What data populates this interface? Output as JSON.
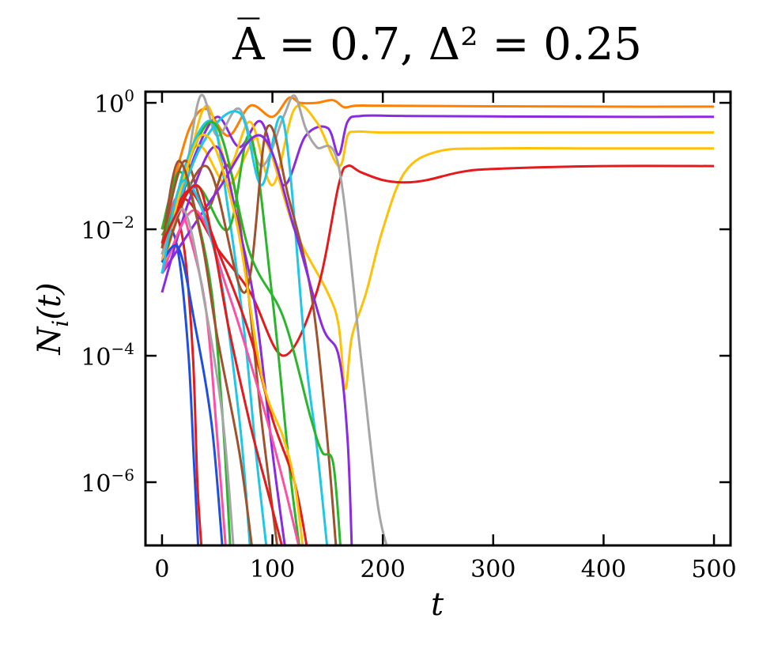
{
  "chart_data": {
    "type": "line",
    "title": "A̅ = 0.7,   Δ² = 0.25",
    "xlabel": "t",
    "ylabel": "N_i(t)",
    "x_ticks": [
      0,
      100,
      200,
      300,
      400,
      500
    ],
    "x_tick_labels": [
      "0",
      "100",
      "200",
      "300",
      "400",
      "500"
    ],
    "y_ticks": [
      1,
      0.01,
      0.0001,
      1e-06
    ],
    "y_tick_labels": [
      {
        "base": "10",
        "exp": "0"
      },
      {
        "base": "10",
        "exp": "−2"
      },
      {
        "base": "10",
        "exp": "−4"
      },
      {
        "base": "10",
        "exp": "−6"
      }
    ],
    "xlim": [
      -15,
      515
    ],
    "ylim": [
      1e-07,
      1.5
    ],
    "y_scale": "log",
    "grid": false,
    "legend": "none",
    "palette": [
      "#e41a1c",
      "#ff7f00",
      "#8a2be2",
      "#ffc107",
      "#1fc7e6",
      "#a6a6a6",
      "#2ab52a",
      "#a0522d",
      "#ff4fa3",
      "#1f4fe0"
    ],
    "series": [
      {
        "color": "#ff7f00",
        "x": [
          0,
          10,
          25,
          40,
          60,
          80,
          100,
          115,
          125,
          140,
          155,
          165,
          175,
          200,
          300,
          400,
          500
        ],
        "y": [
          0.01,
          0.05,
          0.4,
          0.8,
          0.3,
          0.9,
          0.6,
          1.2,
          1.0,
          1.0,
          1.1,
          0.85,
          0.9,
          0.9,
          0.88,
          0.87,
          0.87
        ]
      },
      {
        "color": "#8a2be2",
        "x": [
          0,
          15,
          30,
          50,
          70,
          90,
          110,
          130,
          150,
          160,
          168,
          180,
          220,
          300,
          400,
          500
        ],
        "y": [
          0.003,
          0.02,
          0.15,
          0.6,
          0.2,
          0.5,
          0.05,
          0.3,
          0.4,
          0.15,
          0.5,
          0.62,
          0.62,
          0.61,
          0.6,
          0.6
        ]
      },
      {
        "color": "#ffc107",
        "x": [
          0,
          20,
          40,
          60,
          80,
          100,
          120,
          140,
          160,
          168,
          175,
          200,
          250,
          300,
          400,
          500
        ],
        "y": [
          0.002,
          0.05,
          0.9,
          0.1,
          0.5,
          0.05,
          0.8,
          0.5,
          0.1,
          0.3,
          0.35,
          0.34,
          0.34,
          0.34,
          0.34,
          0.34
        ]
      },
      {
        "color": "#ffc107",
        "x": [
          0,
          30,
          60,
          90,
          120,
          150,
          160,
          166,
          172,
          185,
          200,
          220,
          250,
          300,
          400,
          500
        ],
        "y": [
          0.004,
          0.2,
          0.05,
          0.3,
          0.01,
          0.001,
          0.0003,
          3e-05,
          0.0002,
          0.001,
          0.01,
          0.08,
          0.17,
          0.19,
          0.19,
          0.19
        ]
      },
      {
        "color": "#e41a1c",
        "x": [
          0,
          20,
          50,
          80,
          110,
          140,
          160,
          168,
          180,
          200,
          220,
          240,
          270,
          300,
          400,
          500
        ],
        "y": [
          0.005,
          0.03,
          0.005,
          0.001,
          0.0001,
          0.001,
          0.05,
          0.1,
          0.08,
          0.06,
          0.055,
          0.06,
          0.08,
          0.09,
          0.1,
          0.1
        ]
      },
      {
        "color": "#a6a6a6",
        "x": [
          0,
          20,
          35,
          50,
          70,
          90,
          110,
          120,
          130,
          140,
          160,
          180,
          195,
          205
        ],
        "y": [
          0.004,
          0.06,
          1.3,
          0.3,
          0.8,
          0.1,
          0.6,
          1.3,
          0.4,
          0.2,
          0.1,
          0.0001,
          5e-07,
          8e-08
        ]
      },
      {
        "color": "#e41a1c",
        "x": [
          0,
          10,
          20,
          28,
          32,
          36
        ],
        "y": [
          0.01,
          0.02,
          0.005,
          0.0001,
          1e-06,
          8e-08
        ]
      },
      {
        "color": "#1f4fe0",
        "x": [
          0,
          8,
          16,
          24,
          29,
          33
        ],
        "y": [
          0.005,
          0.01,
          0.003,
          0.0001,
          2e-06,
          8e-08
        ]
      },
      {
        "color": "#2ab52a",
        "x": [
          0,
          15,
          30,
          45,
          55,
          62
        ],
        "y": [
          0.01,
          0.08,
          0.02,
          0.001,
          1e-05,
          8e-08
        ]
      },
      {
        "color": "#ff4fa3",
        "x": [
          0,
          12,
          25,
          40,
          50,
          58
        ],
        "y": [
          0.003,
          0.03,
          0.008,
          0.0005,
          5e-06,
          8e-08
        ]
      },
      {
        "color": "#1fc7e6",
        "x": [
          0,
          20,
          45,
          60,
          75,
          85,
          95
        ],
        "y": [
          0.002,
          0.09,
          0.5,
          0.02,
          0.0002,
          3e-06,
          8e-08
        ]
      },
      {
        "color": "#a0522d",
        "x": [
          0,
          20,
          40,
          60,
          75,
          90,
          105
        ],
        "y": [
          0.006,
          0.12,
          0.02,
          0.1,
          0.003,
          1e-05,
          8e-08
        ]
      },
      {
        "color": "#8a2be2",
        "x": [
          0,
          25,
          50,
          70,
          85,
          100,
          112
        ],
        "y": [
          0.001,
          0.03,
          0.2,
          0.01,
          0.0005,
          3e-06,
          8e-08
        ]
      },
      {
        "color": "#2ab52a",
        "x": [
          0,
          30,
          60,
          80,
          100,
          115,
          125
        ],
        "y": [
          0.008,
          0.05,
          0.01,
          0.3,
          0.0008,
          2e-06,
          8e-08
        ]
      },
      {
        "color": "#1fc7e6",
        "x": [
          0,
          35,
          70,
          90,
          110,
          130,
          140,
          150
        ],
        "y": [
          0.004,
          0.2,
          0.7,
          0.05,
          0.5,
          0.0001,
          4e-06,
          8e-08
        ]
      },
      {
        "color": "#a0522d",
        "x": [
          0,
          40,
          75,
          95,
          115,
          135,
          148,
          158
        ],
        "y": [
          0.003,
          0.1,
          0.001,
          0.4,
          0.03,
          0.001,
          1e-05,
          8e-08
        ]
      },
      {
        "color": "#2ab52a",
        "x": [
          0,
          45,
          80,
          110,
          135,
          145,
          155,
          162
        ],
        "y": [
          0.006,
          0.5,
          0.004,
          0.0004,
          1e-05,
          3e-06,
          2e-06,
          8e-08
        ]
      },
      {
        "color": "#8a2be2",
        "x": [
          0,
          50,
          90,
          120,
          145,
          160,
          168,
          172
        ],
        "y": [
          0.002,
          0.04,
          0.3,
          0.01,
          0.0003,
          0.0001,
          5e-06,
          8e-08
        ]
      },
      {
        "color": "#ff4fa3",
        "x": [
          0,
          30,
          60,
          90,
          110,
          125
        ],
        "y": [
          0.002,
          0.02,
          0.001,
          2e-05,
          1e-06,
          8e-08
        ]
      },
      {
        "color": "#e41a1c",
        "x": [
          0,
          25,
          55,
          80,
          100,
          120,
          132
        ],
        "y": [
          0.005,
          0.04,
          0.003,
          0.0002,
          1e-05,
          1e-06,
          8e-08
        ]
      },
      {
        "color": "#ffc107",
        "x": [
          0,
          35,
          65,
          90,
          110,
          120,
          128
        ],
        "y": [
          0.003,
          0.3,
          0.02,
          5e-05,
          5e-06,
          1e-06,
          8e-08
        ]
      },
      {
        "color": "#1f4fe0",
        "x": [
          0,
          15,
          30,
          45,
          55
        ],
        "y": [
          0.003,
          0.005,
          0.0003,
          8e-06,
          8e-08
        ]
      },
      {
        "color": "#a6a6a6",
        "x": [
          0,
          20,
          40,
          55,
          65
        ],
        "y": [
          0.004,
          0.02,
          0.0005,
          1e-05,
          8e-08
        ]
      },
      {
        "color": "#1fc7e6",
        "x": [
          0,
          20,
          50,
          70,
          80
        ],
        "y": [
          0.002,
          0.06,
          0.003,
          1e-05,
          8e-08
        ]
      },
      {
        "color": "#a0522d",
        "x": [
          0,
          15,
          35,
          50,
          70,
          82
        ],
        "y": [
          0.005,
          0.12,
          0.008,
          0.0002,
          3e-06,
          8e-08
        ]
      },
      {
        "color": "#e41a1c",
        "x": [
          0,
          30,
          45,
          60,
          80,
          95,
          110
        ],
        "y": [
          0.006,
          0.05,
          0.008,
          0.0003,
          8e-06,
          8e-07,
          8e-08
        ]
      }
    ]
  }
}
